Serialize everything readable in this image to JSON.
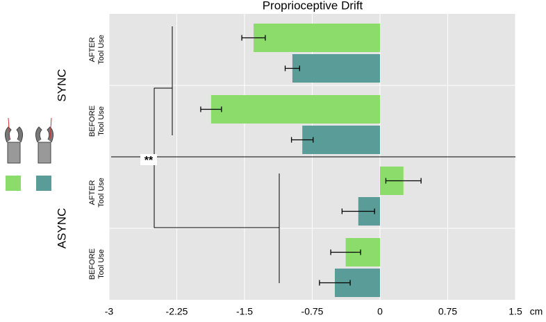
{
  "chart_data": {
    "type": "bar",
    "orientation": "horizontal",
    "title": "Proprioceptive Drift",
    "x_label": "cm",
    "categories": [
      [
        "AFTER",
        "Tool Use"
      ],
      [
        "BEFORE",
        "Tool Use"
      ],
      [
        "AFTER",
        "Tool Use"
      ],
      [
        "BEFORE",
        "Tool Use"
      ]
    ],
    "groups": [
      "SYNC",
      "ASYNC"
    ],
    "series": [
      {
        "color": "#8cdc6c",
        "values": [
          -1.4,
          -1.87,
          0.26,
          -0.38
        ],
        "errors": [
          0.13,
          0.115,
          0.195,
          0.165
        ]
      },
      {
        "color": "#5a9c98",
        "values": [
          -0.97,
          -0.86,
          -0.24,
          -0.5
        ],
        "errors": [
          0.08,
          0.12,
          0.18,
          0.17
        ]
      }
    ],
    "xlim": [
      -3,
      1.5
    ],
    "xticks": [
      -3,
      -2.25,
      -1.5,
      -0.75,
      0,
      0.75,
      1.5
    ],
    "grid": true,
    "annotation": "**"
  }
}
